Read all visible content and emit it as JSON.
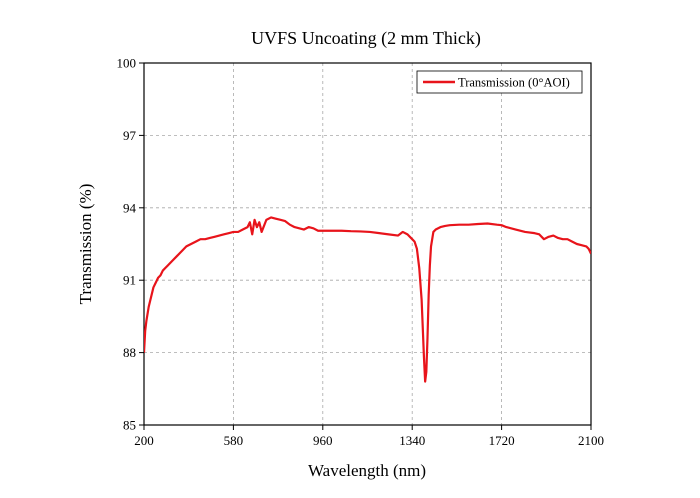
{
  "chart_data": {
    "type": "line",
    "title": "UVFS Uncoating (2 mm  Thick)",
    "xlabel": "Wavelength (nm)",
    "ylabel": "Transmission (%)",
    "xlim": [
      200,
      2100
    ],
    "ylim": [
      85,
      100
    ],
    "xticks": [
      "200",
      "580",
      "960",
      "1340",
      "1720",
      "2100"
    ],
    "yticks": [
      "85",
      "88",
      "91",
      "94",
      "97",
      "100"
    ],
    "grid": true,
    "legend_position": "top-right",
    "series": [
      {
        "name": "Transmission (0°AOI)",
        "color": "#e8141b",
        "x": [
          200,
          205,
          210,
          220,
          230,
          240,
          250,
          260,
          270,
          280,
          290,
          300,
          320,
          340,
          360,
          380,
          400,
          420,
          440,
          460,
          480,
          500,
          520,
          540,
          560,
          580,
          600,
          620,
          640,
          650,
          660,
          670,
          680,
          690,
          700,
          720,
          740,
          760,
          780,
          800,
          820,
          840,
          860,
          880,
          900,
          920,
          940,
          960,
          1000,
          1040,
          1080,
          1120,
          1160,
          1200,
          1240,
          1280,
          1300,
          1320,
          1340,
          1350,
          1360,
          1370,
          1380,
          1385,
          1390,
          1395,
          1400,
          1405,
          1410,
          1415,
          1420,
          1430,
          1440,
          1460,
          1480,
          1500,
          1540,
          1580,
          1620,
          1660,
          1700,
          1720,
          1740,
          1780,
          1820,
          1860,
          1880,
          1900,
          1920,
          1940,
          1960,
          1980,
          2000,
          2020,
          2040,
          2060,
          2080,
          2090,
          2100
        ],
        "y": [
          88.0,
          88.9,
          89.3,
          89.9,
          90.3,
          90.7,
          90.9,
          91.1,
          91.2,
          91.4,
          91.5,
          91.6,
          91.8,
          92.0,
          92.2,
          92.4,
          92.5,
          92.6,
          92.7,
          92.7,
          92.75,
          92.8,
          92.85,
          92.9,
          92.95,
          93.0,
          93.0,
          93.1,
          93.2,
          93.4,
          92.9,
          93.5,
          93.2,
          93.4,
          93.0,
          93.5,
          93.6,
          93.55,
          93.5,
          93.45,
          93.3,
          93.2,
          93.15,
          93.1,
          93.2,
          93.15,
          93.05,
          93.05,
          93.05,
          93.05,
          93.03,
          93.02,
          93.0,
          92.95,
          92.9,
          92.85,
          93.0,
          92.9,
          92.7,
          92.6,
          92.3,
          91.5,
          90.2,
          89.0,
          87.8,
          86.8,
          87.2,
          88.6,
          90.4,
          91.6,
          92.4,
          93.0,
          93.1,
          93.2,
          93.25,
          93.28,
          93.3,
          93.3,
          93.33,
          93.35,
          93.3,
          93.28,
          93.2,
          93.1,
          93.0,
          92.95,
          92.9,
          92.7,
          92.8,
          92.85,
          92.75,
          92.7,
          92.7,
          92.6,
          92.5,
          92.45,
          92.4,
          92.3,
          92.1
        ]
      }
    ]
  }
}
